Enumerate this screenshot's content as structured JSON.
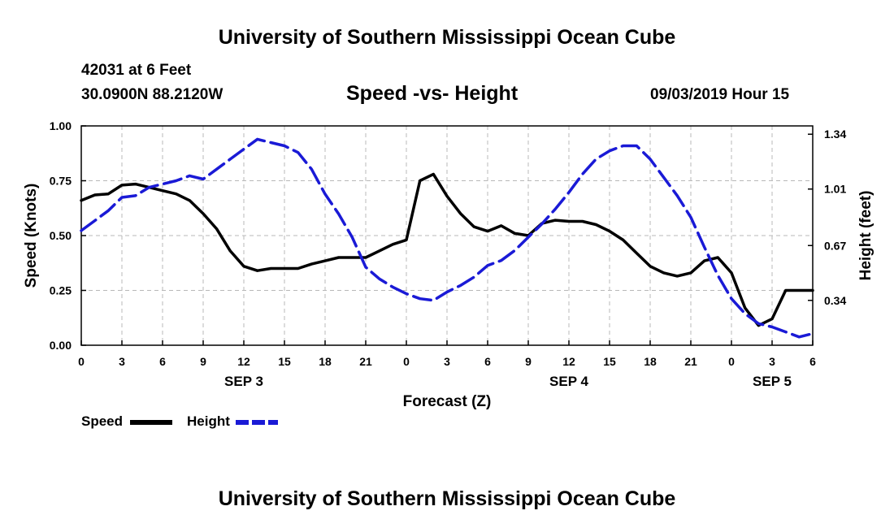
{
  "header": {
    "title": "University of Southern Mississippi Ocean Cube",
    "station": "42031 at 6 Feet",
    "coords": "30.0900N 88.2120W",
    "chart_title": "Speed -vs- Height",
    "datetime": "09/03/2019 Hour 15"
  },
  "footer": {
    "title": "University of Southern Mississippi Ocean Cube"
  },
  "legend": {
    "speed_label": "Speed",
    "height_label": "Height"
  },
  "colors": {
    "speed": "#000000",
    "height": "#1a1ad6",
    "grid": "#b8b8b8"
  },
  "chart_data": {
    "type": "line",
    "title": "Speed -vs- Height",
    "xlabel": "Forecast (Z)",
    "ylabel": "Speed (Knots)",
    "y2label": "Height (feet)",
    "xlim": [
      0,
      54
    ],
    "ylim": [
      0,
      1.0
    ],
    "y2lim": [
      0.07,
      1.39
    ],
    "x_ticks": [
      0,
      3,
      6,
      9,
      12,
      15,
      18,
      21,
      24,
      27,
      30,
      33,
      36,
      39,
      42,
      45,
      48,
      51,
      54
    ],
    "x_tick_labels": [
      "0",
      "3",
      "6",
      "9",
      "12",
      "15",
      "18",
      "21",
      "0",
      "3",
      "6",
      "9",
      "12",
      "15",
      "18",
      "21",
      "0",
      "3",
      "6"
    ],
    "date_labels": [
      {
        "x": 12,
        "label": "SEP 3"
      },
      {
        "x": 36,
        "label": "SEP 4"
      },
      {
        "x": 51,
        "label": "SEP 5"
      }
    ],
    "y_ticks": [
      0,
      0.25,
      0.5,
      0.75,
      1.0
    ],
    "y_tick_labels": [
      "0.00",
      "0.25",
      "0.50",
      "0.75",
      "1.00"
    ],
    "y2_ticks": [
      0.34,
      0.67,
      1.01,
      1.34
    ],
    "y2_tick_labels": [
      "0.34",
      "0.67",
      "1.01",
      "1.34"
    ],
    "grid": true,
    "series": [
      {
        "name": "Speed",
        "axis": "left",
        "style": "solid",
        "x": [
          0,
          1,
          2,
          3,
          4,
          5,
          6,
          7,
          8,
          9,
          10,
          11,
          12,
          13,
          14,
          15,
          16,
          17,
          18,
          19,
          20,
          21,
          22,
          23,
          24,
          25,
          26,
          27,
          28,
          29,
          30,
          31,
          32,
          33,
          34,
          35,
          36,
          37,
          38,
          39,
          40,
          41,
          42,
          43,
          44,
          45,
          46,
          47,
          48,
          49,
          50,
          51,
          52,
          53,
          54
        ],
        "values": [
          0.66,
          0.685,
          0.69,
          0.73,
          0.735,
          0.72,
          0.705,
          0.69,
          0.66,
          0.6,
          0.53,
          0.43,
          0.36,
          0.34,
          0.35,
          0.35,
          0.35,
          0.37,
          0.385,
          0.4,
          0.4,
          0.4,
          0.43,
          0.46,
          0.48,
          0.75,
          0.78,
          0.68,
          0.6,
          0.54,
          0.52,
          0.545,
          0.51,
          0.5,
          0.555,
          0.57,
          0.565,
          0.565,
          0.55,
          0.52,
          0.48,
          0.42,
          0.36,
          0.33,
          0.315,
          0.33,
          0.385,
          0.4,
          0.33,
          0.17,
          0.09,
          0.12,
          0.25,
          0.25,
          0.25
        ]
      },
      {
        "name": "Height",
        "axis": "right",
        "style": "dashed",
        "x": [
          0,
          1,
          2,
          3,
          4,
          5,
          6,
          7,
          8,
          9,
          10,
          11,
          12,
          13,
          14,
          15,
          16,
          17,
          18,
          19,
          20,
          21,
          22,
          23,
          24,
          25,
          26,
          27,
          28,
          29,
          30,
          31,
          32,
          33,
          34,
          35,
          36,
          37,
          38,
          39,
          40,
          41,
          42,
          43,
          44,
          45,
          46,
          47,
          48,
          49,
          50,
          51,
          52,
          53,
          54
        ],
        "values": [
          0.76,
          0.82,
          0.88,
          0.96,
          0.97,
          1.02,
          1.04,
          1.06,
          1.09,
          1.07,
          1.13,
          1.19,
          1.25,
          1.31,
          1.29,
          1.27,
          1.23,
          1.13,
          0.98,
          0.86,
          0.72,
          0.54,
          0.47,
          0.42,
          0.38,
          0.35,
          0.34,
          0.39,
          0.43,
          0.48,
          0.55,
          0.58,
          0.64,
          0.72,
          0.8,
          0.89,
          0.99,
          1.1,
          1.19,
          1.24,
          1.27,
          1.27,
          1.19,
          1.08,
          0.97,
          0.84,
          0.66,
          0.49,
          0.35,
          0.26,
          0.2,
          0.18,
          0.15,
          0.12,
          0.14
        ]
      }
    ]
  }
}
